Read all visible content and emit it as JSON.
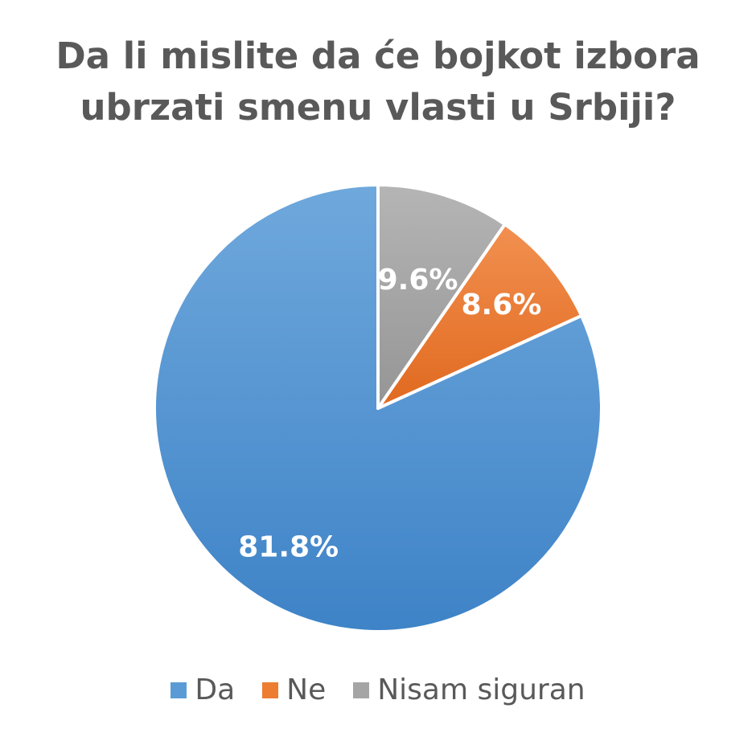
{
  "chart_data": {
    "type": "pie",
    "title": "Da li mislite da će bojkot izbora ubrzati smenu vlasti u Srbiji?",
    "title_lines": [
      "Da li mislite da će bojkot izbora",
      "ubrzati smenu vlasti u Srbiji?"
    ],
    "start_angle_deg": 90,
    "direction": "counterclockwise",
    "slices": [
      {
        "name": "Da",
        "value": 81.8,
        "label": "81.8%",
        "color": "#5B9BD5",
        "color_light": "#6FA8DC",
        "color_dark": "#3E83C7"
      },
      {
        "name": "Ne",
        "value": 8.6,
        "label": "8.6%",
        "color": "#ED7D31",
        "color_light": "#F29050",
        "color_dark": "#E0691F"
      },
      {
        "name": "Nisam siguran",
        "value": 9.6,
        "label": "9.6%",
        "color": "#A5A5A5",
        "color_light": "#B5B5B5",
        "color_dark": "#959595"
      }
    ],
    "legend_position": "bottom"
  }
}
